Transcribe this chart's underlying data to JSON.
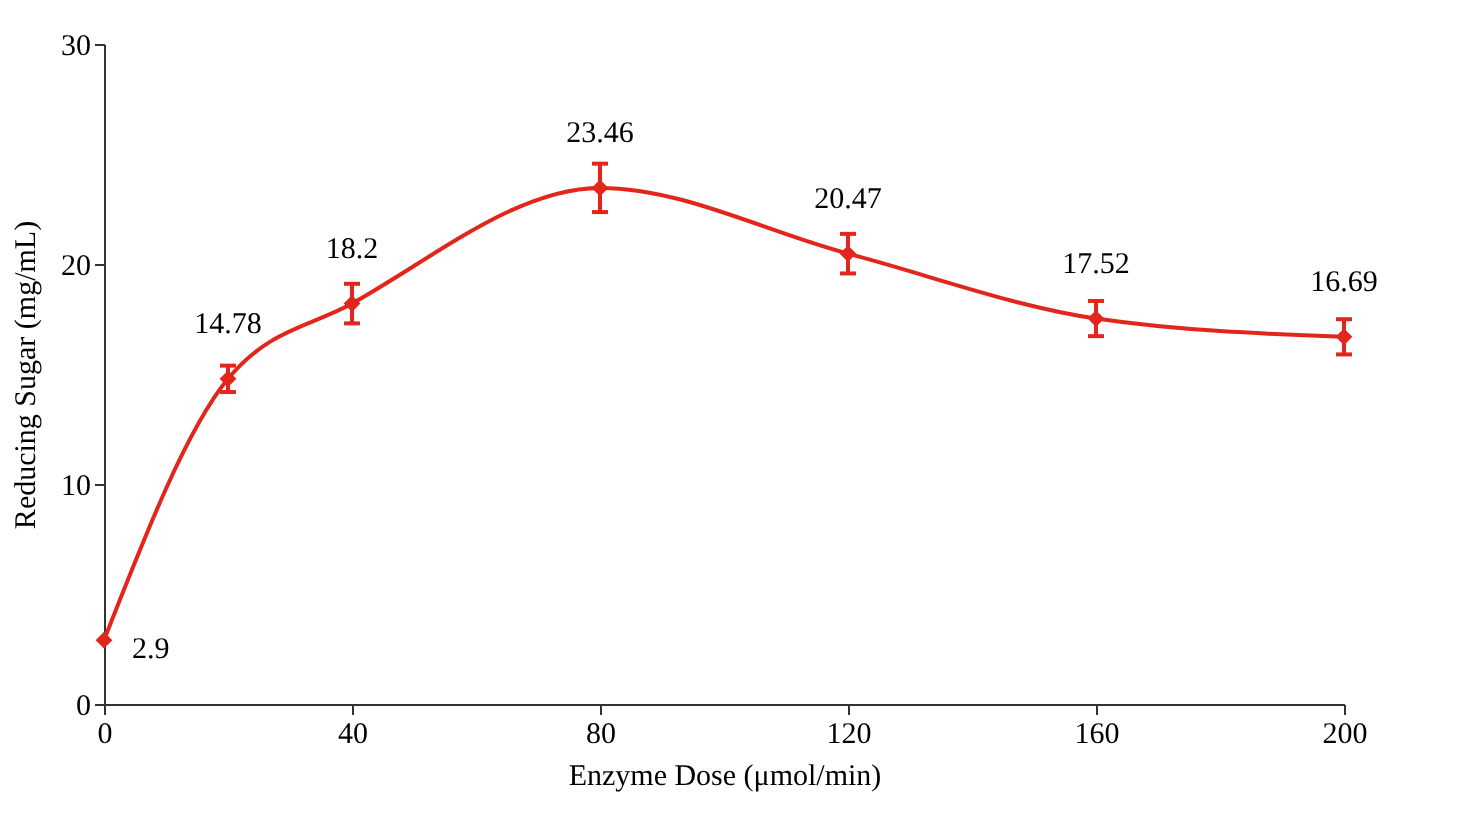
{
  "chart_data": {
    "type": "line",
    "xlabel": "Enzyme Dose (μmol/min)",
    "ylabel": "Reducing Sugar (mg/mL)",
    "x": [
      0,
      20,
      40,
      80,
      120,
      160,
      200
    ],
    "series": [
      {
        "color": "#e2261c",
        "values": [
          2.9,
          14.78,
          18.2,
          23.46,
          20.47,
          17.52,
          16.69
        ],
        "errors": [
          null,
          0.6,
          0.9,
          1.1,
          0.9,
          0.8,
          0.8
        ]
      }
    ],
    "xlim": [
      0,
      200
    ],
    "xticks": [
      0,
      40,
      80,
      120,
      160,
      200
    ],
    "ylim": [
      0,
      30
    ],
    "yticks": [
      0,
      10,
      20,
      30
    ],
    "data_labels": true,
    "marker": "diamond",
    "line_style": "solid",
    "grid": false
  }
}
